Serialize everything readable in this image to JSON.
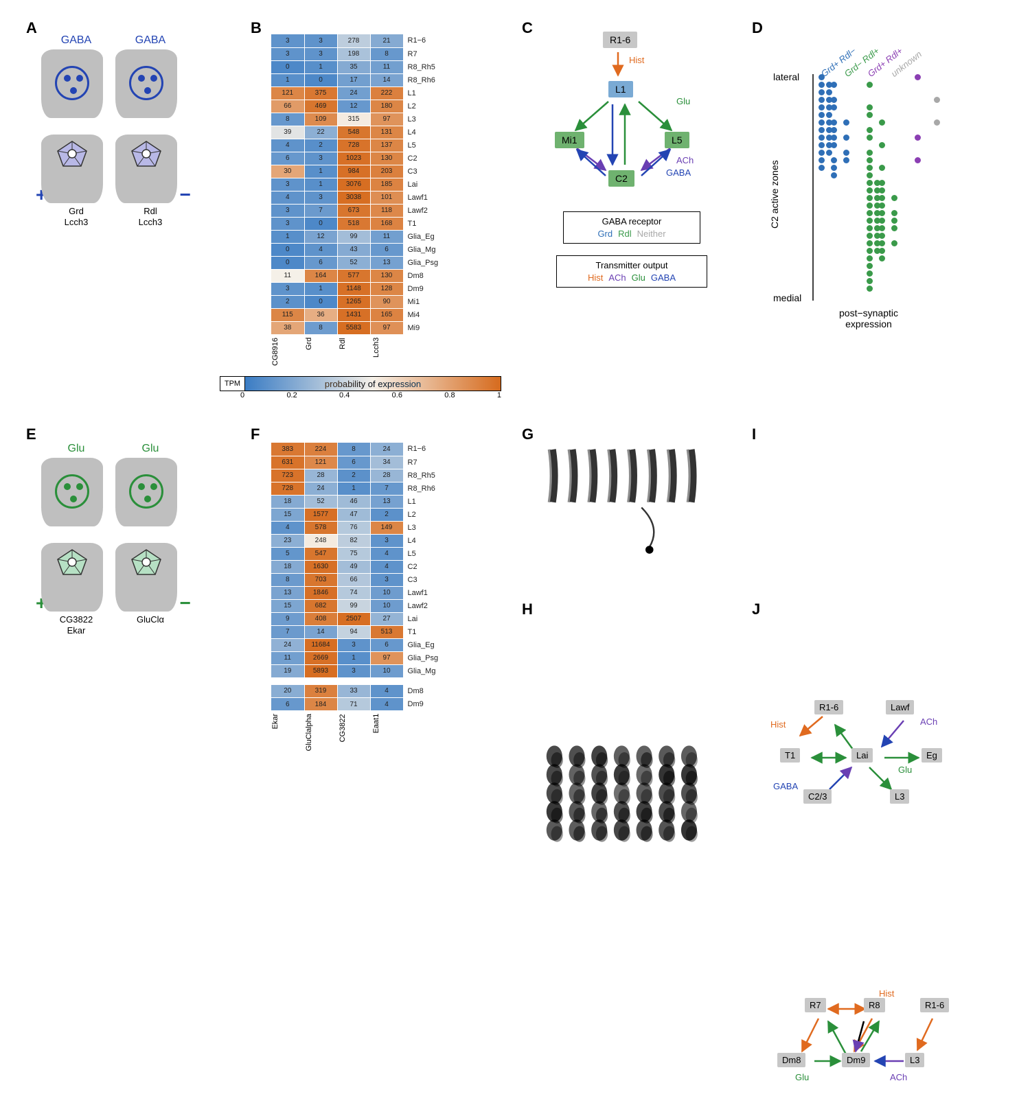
{
  "colors": {
    "heat_low": "#3a7cc4",
    "heat_mid": "#f5f0e8",
    "heat_high": "#d66b1e",
    "grey_node": "#c7c7c7",
    "blue_node": "#7aaad4",
    "green_node": "#6fb26f",
    "hist": "#e06a1f",
    "ach": "#6a3fb3",
    "glu": "#2a8f3a",
    "gaba": "#2344b3",
    "grd": "#2f6fb7",
    "rdl": "#3a9a4a",
    "both": "#8b3fb3",
    "unknown": "#a8a8a8",
    "lilac": "#b8b8e6",
    "mint": "#b6e0c4",
    "soma": "#bfbfbf"
  },
  "panelA": {
    "nt_label": "GABA",
    "left_labels": [
      "Grd",
      "Lcch3"
    ],
    "right_labels": [
      "Rdl",
      "Lcch3"
    ],
    "left_sign": "+",
    "right_sign": "−"
  },
  "panelE": {
    "nt_label": "Glu",
    "left_labels": [
      "CG3822",
      "Ekar"
    ],
    "right_labels": [
      "GluClα"
    ],
    "left_sign": "+",
    "right_sign": "−"
  },
  "colorbar": {
    "tpm": "TPM",
    "title": "probability of expression",
    "ticks": [
      "0",
      "0.2",
      "0.4",
      "0.6",
      "0.8",
      "1"
    ]
  },
  "panelB": {
    "cols": [
      "CG8916",
      "Grd",
      "Rdl",
      "Lcch3"
    ],
    "rows": [
      {
        "label": "R1−6",
        "v": [
          3,
          3,
          278,
          21
        ],
        "p": [
          0.1,
          0.1,
          0.35,
          0.2
        ]
      },
      {
        "label": "R7",
        "v": [
          3,
          3,
          198,
          8
        ],
        "p": [
          0.1,
          0.1,
          0.3,
          0.12
        ]
      },
      {
        "label": "R8_Rh5",
        "v": [
          0,
          1,
          35,
          11
        ],
        "p": [
          0.05,
          0.08,
          0.2,
          0.15
        ]
      },
      {
        "label": "R8_Rh6",
        "v": [
          1,
          0,
          17,
          14
        ],
        "p": [
          0.08,
          0.05,
          0.15,
          0.17
        ]
      },
      {
        "label": "L1",
        "v": [
          121,
          375,
          24,
          222
        ],
        "p": [
          0.9,
          0.95,
          0.15,
          0.92
        ]
      },
      {
        "label": "L2",
        "v": [
          66,
          469,
          12,
          180
        ],
        "p": [
          0.82,
          0.96,
          0.12,
          0.9
        ]
      },
      {
        "label": "L3",
        "v": [
          8,
          109,
          315,
          97
        ],
        "p": [
          0.12,
          0.88,
          0.52,
          0.85
        ]
      },
      {
        "label": "L4",
        "v": [
          39,
          22,
          548,
          131
        ],
        "p": [
          0.45,
          0.22,
          0.96,
          0.9
        ]
      },
      {
        "label": "L5",
        "v": [
          4,
          2,
          728,
          137
        ],
        "p": [
          0.1,
          0.08,
          0.97,
          0.9
        ]
      },
      {
        "label": "C2",
        "v": [
          6,
          3,
          1023,
          130
        ],
        "p": [
          0.12,
          0.1,
          0.98,
          0.9
        ]
      },
      {
        "label": "C3",
        "v": [
          30,
          1,
          984,
          203
        ],
        "p": [
          0.78,
          0.08,
          0.98,
          0.92
        ]
      },
      {
        "label": "Lai",
        "v": [
          3,
          1,
          3076,
          185
        ],
        "p": [
          0.1,
          0.08,
          0.99,
          0.91
        ]
      },
      {
        "label": "Lawf1",
        "v": [
          4,
          3,
          3038,
          101
        ],
        "p": [
          0.1,
          0.1,
          0.99,
          0.87
        ]
      },
      {
        "label": "Lawf2",
        "v": [
          3,
          7,
          673,
          118
        ],
        "p": [
          0.1,
          0.13,
          0.96,
          0.89
        ]
      },
      {
        "label": "T1",
        "v": [
          3,
          0,
          518,
          168
        ],
        "p": [
          0.1,
          0.05,
          0.95,
          0.91
        ]
      },
      {
        "label": "Glia_Eg",
        "v": [
          1,
          12,
          99,
          11
        ],
        "p": [
          0.08,
          0.17,
          0.28,
          0.15
        ]
      },
      {
        "label": "Glia_Mg",
        "v": [
          0,
          4,
          43,
          6
        ],
        "p": [
          0.05,
          0.1,
          0.2,
          0.12
        ]
      },
      {
        "label": "Glia_Psg",
        "v": [
          0,
          6,
          52,
          13
        ],
        "p": [
          0.05,
          0.12,
          0.22,
          0.16
        ]
      },
      {
        "label": "Dm8",
        "v": [
          11,
          164,
          577,
          130
        ],
        "p": [
          0.5,
          0.9,
          0.96,
          0.9
        ]
      },
      {
        "label": "Dm9",
        "v": [
          3,
          1,
          1148,
          128
        ],
        "p": [
          0.1,
          0.08,
          0.98,
          0.9
        ]
      },
      {
        "label": "Mi1",
        "v": [
          2,
          0,
          1265,
          90
        ],
        "p": [
          0.09,
          0.05,
          0.98,
          0.85
        ]
      },
      {
        "label": "Mi4",
        "v": [
          115,
          36,
          1431,
          165
        ],
        "p": [
          0.9,
          0.75,
          0.98,
          0.91
        ]
      },
      {
        "label": "Mi9",
        "v": [
          38,
          8,
          5583,
          97
        ],
        "p": [
          0.78,
          0.14,
          0.99,
          0.86
        ]
      }
    ]
  },
  "panelF": {
    "cols": [
      "Ekar",
      "GluClalpha",
      "CG3822",
      "Eaat1"
    ],
    "group1": [
      {
        "label": "R1−6",
        "v": [
          383,
          224,
          8,
          24
        ],
        "p": [
          0.95,
          0.92,
          0.12,
          0.22
        ]
      },
      {
        "label": "R7",
        "v": [
          631,
          121,
          6,
          34
        ],
        "p": [
          0.97,
          0.89,
          0.12,
          0.28
        ]
      },
      {
        "label": "R8_Rh5",
        "v": [
          723,
          28,
          2,
          28
        ],
        "p": [
          0.97,
          0.25,
          0.09,
          0.25
        ]
      },
      {
        "label": "R8_Rh6",
        "v": [
          728,
          24,
          1,
          7
        ],
        "p": [
          0.97,
          0.22,
          0.08,
          0.12
        ]
      },
      {
        "label": "L1",
        "v": [
          18,
          52,
          46,
          13
        ],
        "p": [
          0.2,
          0.28,
          0.27,
          0.16
        ]
      },
      {
        "label": "L2",
        "v": [
          15,
          1577,
          47,
          2
        ],
        "p": [
          0.18,
          0.98,
          0.27,
          0.09
        ]
      },
      {
        "label": "L3",
        "v": [
          4,
          578,
          76,
          149
        ],
        "p": [
          0.1,
          0.96,
          0.33,
          0.9
        ]
      },
      {
        "label": "L4",
        "v": [
          23,
          248,
          82,
          3
        ],
        "p": [
          0.22,
          0.52,
          0.35,
          0.1
        ]
      },
      {
        "label": "L5",
        "v": [
          5,
          547,
          75,
          4
        ],
        "p": [
          0.11,
          0.96,
          0.33,
          0.1
        ]
      },
      {
        "label": "C2",
        "v": [
          18,
          1630,
          49,
          4
        ],
        "p": [
          0.2,
          0.98,
          0.28,
          0.1
        ]
      },
      {
        "label": "C3",
        "v": [
          8,
          703,
          66,
          3
        ],
        "p": [
          0.13,
          0.96,
          0.32,
          0.1
        ]
      },
      {
        "label": "Lawf1",
        "v": [
          13,
          1846,
          74,
          10
        ],
        "p": [
          0.17,
          0.98,
          0.33,
          0.14
        ]
      },
      {
        "label": "Lawf2",
        "v": [
          15,
          682,
          99,
          10
        ],
        "p": [
          0.18,
          0.96,
          0.38,
          0.14
        ]
      },
      {
        "label": "Lai",
        "v": [
          9,
          408,
          2507,
          27
        ],
        "p": [
          0.14,
          0.93,
          0.99,
          0.24
        ]
      },
      {
        "label": "T1",
        "v": [
          7,
          14,
          94,
          513
        ],
        "p": [
          0.13,
          0.17,
          0.37,
          0.95
        ]
      },
      {
        "label": "Glia_Eg",
        "v": [
          24,
          11684,
          3,
          6
        ],
        "p": [
          0.23,
          0.99,
          0.1,
          0.12
        ]
      },
      {
        "label": "Glia_Psg",
        "v": [
          11,
          2669,
          1,
          97
        ],
        "p": [
          0.15,
          0.98,
          0.08,
          0.85
        ]
      },
      {
        "label": "Glia_Mg",
        "v": [
          19,
          5893,
          3,
          10
        ],
        "p": [
          0.2,
          0.99,
          0.1,
          0.14
        ]
      }
    ],
    "group2": [
      {
        "label": "Dm8",
        "v": [
          20,
          319,
          33,
          4
        ],
        "p": [
          0.21,
          0.92,
          0.25,
          0.1
        ]
      },
      {
        "label": "Dm9",
        "v": [
          6,
          184,
          71,
          4
        ],
        "p": [
          0.12,
          0.9,
          0.33,
          0.1
        ]
      }
    ]
  },
  "panelC": {
    "nodes": {
      "r16": "R1-6",
      "l1": "L1",
      "mi1": "Mi1",
      "l5": "L5",
      "c2": "C2"
    },
    "nt": {
      "hist": "Hist",
      "glu": "Glu",
      "ach": "ACh",
      "gaba": "GABA"
    },
    "legend1_title": "GABA receptor",
    "legend1_opts": [
      {
        "txt": "Grd",
        "key": "grd"
      },
      {
        "txt": "Rdl",
        "key": "rdl"
      },
      {
        "txt": "Neither",
        "key": "unknown"
      }
    ],
    "legend2_title": "Transmitter output",
    "legend2_opts": [
      {
        "txt": "Hist",
        "key": "hist"
      },
      {
        "txt": "ACh",
        "key": "ach"
      },
      {
        "txt": "Glu",
        "key": "glu"
      },
      {
        "txt": "GABA",
        "key": "gaba"
      }
    ]
  },
  "panelD": {
    "headers": [
      "Grd+ Rdl−",
      "Grd− Rdl+",
      "Grd+ Rdl+",
      "unknown"
    ],
    "header_colors": [
      "grd",
      "rdl",
      "both",
      "unknown"
    ],
    "y_top": "lateral",
    "y_bottom": "medial",
    "y_axis": "C2 active zones",
    "x_axis": "post−synaptic\nexpression",
    "columns": [
      {
        "x": 0,
        "color": "grd",
        "counts": [
          1,
          2,
          2,
          2,
          2,
          2,
          2,
          2,
          2,
          2,
          2,
          1,
          1,
          0,
          0,
          0,
          0,
          0,
          0,
          0,
          0,
          0,
          0,
          0,
          0,
          0,
          0,
          0,
          0
        ]
      },
      {
        "x": 1,
        "color": "grd",
        "counts": [
          0,
          1,
          0,
          1,
          1,
          0,
          1,
          1,
          1,
          1,
          0,
          1,
          1,
          1,
          0,
          0,
          0,
          0,
          0,
          0,
          0,
          0,
          0,
          0,
          0,
          0,
          0,
          0,
          0
        ]
      },
      {
        "x": 2,
        "color": "grd",
        "counts": [
          0,
          0,
          0,
          0,
          0,
          0,
          1,
          0,
          1,
          0,
          1,
          1,
          0,
          0,
          0,
          0,
          0,
          0,
          0,
          0,
          0,
          0,
          0,
          0,
          0,
          0,
          0,
          0,
          0
        ]
      },
      {
        "x": 3,
        "color": "rdl",
        "counts": [
          0,
          1,
          0,
          0,
          1,
          1,
          0,
          1,
          1,
          0,
          1,
          1,
          1,
          1,
          2,
          2,
          2,
          2,
          2,
          2,
          2,
          2,
          2,
          2,
          1,
          1,
          1,
          1,
          1
        ]
      },
      {
        "x": 4,
        "color": "rdl",
        "counts": [
          0,
          0,
          0,
          0,
          0,
          0,
          1,
          0,
          0,
          1,
          0,
          0,
          1,
          0,
          1,
          1,
          1,
          1,
          1,
          1,
          1,
          1,
          1,
          1,
          1,
          0,
          0,
          0,
          0
        ]
      },
      {
        "x": 5,
        "color": "rdl",
        "counts": [
          0,
          0,
          0,
          0,
          0,
          0,
          0,
          0,
          0,
          0,
          0,
          0,
          0,
          0,
          0,
          0,
          1,
          0,
          1,
          1,
          1,
          0,
          1,
          0,
          0,
          0,
          0,
          0,
          0
        ]
      },
      {
        "x": 6,
        "color": "both",
        "counts": [
          1,
          0,
          0,
          0,
          0,
          0,
          0,
          0,
          1,
          0,
          0,
          1,
          0,
          0,
          0,
          0,
          0,
          0,
          0,
          0,
          0,
          0,
          0,
          0,
          0,
          0,
          0,
          0,
          0
        ]
      },
      {
        "x": 7,
        "color": "unknown",
        "counts": [
          0,
          0,
          0,
          1,
          0,
          0,
          1,
          0,
          0,
          0,
          0,
          0,
          0,
          0,
          0,
          0,
          0,
          0,
          0,
          0,
          0,
          0,
          0,
          0,
          0,
          0,
          0,
          0,
          0
        ]
      }
    ]
  },
  "panelI": {
    "nodes": {
      "r16": "R1-6",
      "lawf": "Lawf",
      "t1": "T1",
      "lai": "Lai",
      "eg": "Eg",
      "c23": "C2/3",
      "l3": "L3"
    },
    "nt": {
      "hist": "Hist",
      "ach": "ACh",
      "gaba": "GABA",
      "glu": "Glu"
    }
  },
  "panelJ": {
    "nodes": {
      "r7": "R7",
      "r8": "R8",
      "r16": "R1-6",
      "dm8": "Dm8",
      "dm9": "Dm9",
      "l3": "L3"
    },
    "nt": {
      "hist": "Hist",
      "glu": "Glu",
      "ach": "ACh"
    }
  }
}
